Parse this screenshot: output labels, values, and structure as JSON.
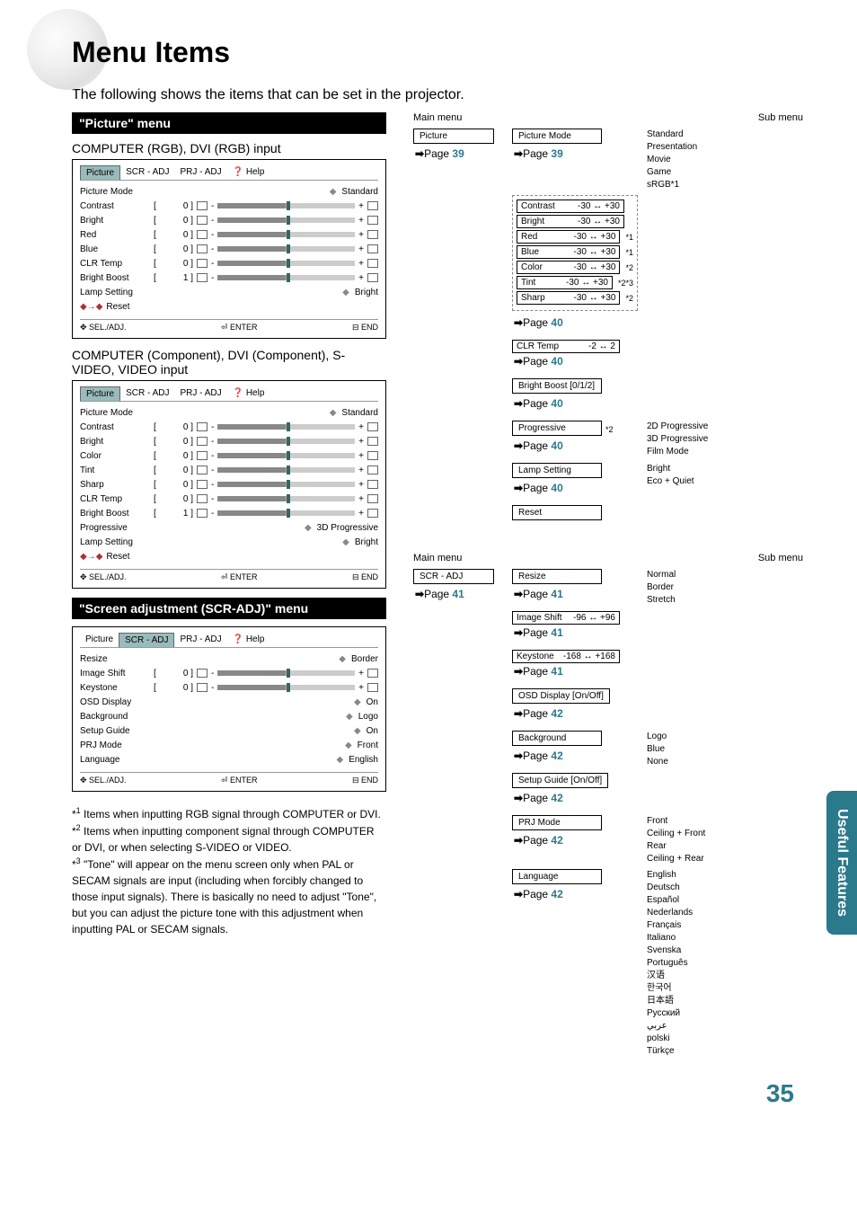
{
  "page": {
    "title": "Menu Items",
    "intro": "The following shows the items that can be set in the projector.",
    "number": "35",
    "side_tab": "Useful Features"
  },
  "picture_menu": {
    "header": "\"Picture\" menu",
    "input1_label": "COMPUTER (RGB), DVI (RGB) input",
    "input2_label": "COMPUTER (Component), DVI (Component), S-VIDEO, VIDEO input",
    "tabs": [
      "Picture",
      "SCR - ADJ",
      "PRJ - ADJ",
      "Help"
    ],
    "osd1_rows": [
      {
        "label": "Picture Mode",
        "type": "diamond",
        "text": "Standard"
      },
      {
        "label": "Contrast",
        "type": "slider",
        "val": "0"
      },
      {
        "label": "Bright",
        "type": "slider",
        "val": "0"
      },
      {
        "label": "Red",
        "type": "slider",
        "val": "0"
      },
      {
        "label": "Blue",
        "type": "slider",
        "val": "0"
      },
      {
        "label": "CLR Temp",
        "type": "slider",
        "val": "0"
      },
      {
        "label": "Bright Boost",
        "type": "slider",
        "val": "1"
      },
      {
        "label": "Lamp Setting",
        "type": "diamond",
        "text": "Bright"
      },
      {
        "label": "Reset",
        "type": "reset"
      }
    ],
    "osd2_rows": [
      {
        "label": "Picture Mode",
        "type": "diamond",
        "text": "Standard"
      },
      {
        "label": "Contrast",
        "type": "slider",
        "val": "0"
      },
      {
        "label": "Bright",
        "type": "slider",
        "val": "0"
      },
      {
        "label": "Color",
        "type": "slider",
        "val": "0"
      },
      {
        "label": "Tint",
        "type": "slider",
        "val": "0"
      },
      {
        "label": "Sharp",
        "type": "slider",
        "val": "0"
      },
      {
        "label": "CLR Temp",
        "type": "slider",
        "val": "0"
      },
      {
        "label": "Bright Boost",
        "type": "slider",
        "val": "1"
      },
      {
        "label": "Progressive",
        "type": "diamond",
        "text": "3D Progressive"
      },
      {
        "label": "Lamp Setting",
        "type": "diamond",
        "text": "Bright"
      },
      {
        "label": "Reset",
        "type": "reset"
      }
    ],
    "footer": {
      "sel": "SEL./ADJ.",
      "enter": "ENTER",
      "end": "END"
    }
  },
  "scr_menu": {
    "header": "\"Screen adjustment (SCR-ADJ)\" menu",
    "tabs": [
      "Picture",
      "SCR - ADJ",
      "PRJ - ADJ",
      "Help"
    ],
    "rows": [
      {
        "label": "Resize",
        "type": "diamond",
        "text": "Border"
      },
      {
        "label": "Image Shift",
        "type": "slider",
        "val": "0"
      },
      {
        "label": "Keystone",
        "type": "slider",
        "val": "0"
      },
      {
        "label": "OSD Display",
        "type": "diamond",
        "text": "On"
      },
      {
        "label": "Background",
        "type": "diamond",
        "text": "Logo"
      },
      {
        "label": "Setup Guide",
        "type": "diamond",
        "text": "On"
      },
      {
        "label": "PRJ Mode",
        "type": "diamond",
        "text": "Front"
      },
      {
        "label": "Language",
        "type": "diamond",
        "text": "English"
      }
    ]
  },
  "tree1": {
    "main_head": "Main menu",
    "sub_head": "Sub menu",
    "picture": {
      "label": "Picture",
      "page": "39"
    },
    "picture_mode": {
      "label": "Picture Mode",
      "page": "39",
      "subs": [
        "Standard",
        "Presentation",
        "Movie",
        "Game",
        "sRGB*1"
      ]
    },
    "adjustments": [
      {
        "label": "Contrast",
        "range": "-30 ↔ +30",
        "note": ""
      },
      {
        "label": "Bright",
        "range": "-30 ↔ +30",
        "note": ""
      },
      {
        "label": "Red",
        "range": "-30 ↔ +30",
        "note": "*1"
      },
      {
        "label": "Blue",
        "range": "-30 ↔ +30",
        "note": "*1"
      },
      {
        "label": "Color",
        "range": "-30 ↔ +30",
        "note": "*2"
      },
      {
        "label": "Tint",
        "range": "-30 ↔ +30",
        "note": "*2*3"
      },
      {
        "label": "Sharp",
        "range": "-30 ↔ +30",
        "note": "*2"
      }
    ],
    "adj_page": "40",
    "clr_temp": {
      "label": "CLR Temp",
      "range": "-2 ↔ 2",
      "page": "40"
    },
    "bright_boost": {
      "label": "Bright Boost [0/1/2]",
      "page": "40"
    },
    "progressive": {
      "label": "Progressive",
      "note": "*2",
      "page": "40",
      "subs": [
        "2D Progressive",
        "3D Progressive",
        "Film Mode"
      ]
    },
    "lamp": {
      "label": "Lamp Setting",
      "page": "40",
      "subs": [
        "Bright",
        "Eco + Quiet"
      ]
    },
    "reset": {
      "label": "Reset"
    }
  },
  "tree2": {
    "main_head": "Main menu",
    "sub_head": "Sub menu",
    "scr": {
      "label": "SCR - ADJ",
      "page": "41"
    },
    "resize": {
      "label": "Resize",
      "page": "41",
      "subs": [
        "Normal",
        "Border",
        "Stretch"
      ]
    },
    "image_shift": {
      "label": "Image Shift",
      "range": "-96 ↔ +96",
      "page": "41"
    },
    "keystone": {
      "label": "Keystone",
      "range": "-168 ↔ +168",
      "page": "41"
    },
    "osd": {
      "label": "OSD Display [On/Off]",
      "page": "42"
    },
    "background": {
      "label": "Background",
      "page": "42",
      "subs": [
        "Logo",
        "Blue",
        "None"
      ]
    },
    "setup": {
      "label": "Setup Guide [On/Off]",
      "page": "42"
    },
    "prj": {
      "label": "PRJ Mode",
      "page": "42",
      "subs": [
        "Front",
        "Ceiling + Front",
        "Rear",
        "Ceiling + Rear"
      ]
    },
    "language": {
      "label": "Language",
      "page": "42",
      "subs": [
        "English",
        "Deutsch",
        "Español",
        "Nederlands",
        "Français",
        "Italiano",
        "Svenska",
        "Português",
        "汉语",
        "한국어",
        "日本語",
        "Русский",
        "عربي",
        "polski",
        "Türkçe"
      ]
    }
  },
  "footnotes": {
    "f1": "Items when inputting RGB signal through COMPUTER or DVI.",
    "f2": "Items when inputting component signal through COMPUTER or DVI, or when selecting S-VIDEO or VIDEO.",
    "f3": "\"Tone\" will appear on the menu screen only when PAL or SECAM signals are input (including when forcibly changed to those input signals). There is basically no need to adjust \"Tone\", but you can adjust the picture tone with this adjustment when inputting PAL or SECAM signals."
  }
}
